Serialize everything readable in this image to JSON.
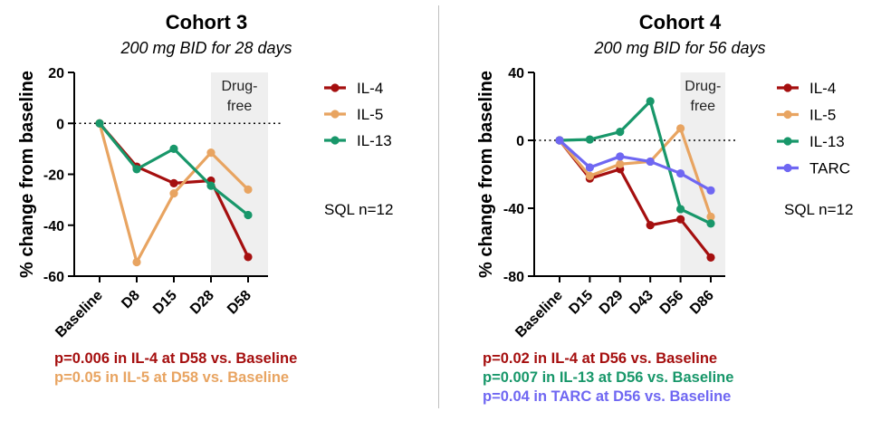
{
  "panels": [
    {
      "title": "Cohort 3",
      "subtitle": "200 mg BID for 28 days",
      "ylabel": "% change from baseline",
      "shaded_label": "Drug-free",
      "note": "SQL n=12",
      "pvalues": [
        {
          "text": "p=0.006 in IL-4 at D58 vs. Baseline",
          "color": "#a50f0f"
        },
        {
          "text": "p=0.05 in IL-5 at D58 vs. Baseline",
          "color": "#e8a461"
        }
      ]
    },
    {
      "title": "Cohort 4",
      "subtitle": "200 mg BID for 56 days",
      "ylabel": "% change from baseline",
      "shaded_label": "Drug-free",
      "note": "SQL n=12",
      "pvalues": [
        {
          "text": "p=0.02 in IL-4 at D56 vs. Baseline",
          "color": "#a50f0f"
        },
        {
          "text": "p=0.007 in IL-13 at D56 vs. Baseline",
          "color": "#18976a"
        },
        {
          "text": "p=0.04 in TARC at D56 vs. Baseline",
          "color": "#6f67f2"
        }
      ]
    }
  ],
  "chart_data": [
    {
      "type": "line",
      "title": "Cohort 3",
      "subtitle": "200 mg BID for 28 days",
      "xlabel": "",
      "ylabel": "% change from baseline",
      "categories": [
        "Baseline",
        "D8",
        "D15",
        "D28",
        "D58"
      ],
      "ylim": [
        -60,
        20
      ],
      "yticks": [
        20,
        0,
        -20,
        -40,
        -60
      ],
      "reference_line": 0,
      "shaded_region": {
        "from": "D28",
        "to": "D58",
        "label": "Drug-free"
      },
      "legend_position": "right",
      "series": [
        {
          "name": "IL-4",
          "color": "#a50f0f",
          "values": [
            0,
            -17,
            -23.5,
            -22.5,
            -52.5
          ]
        },
        {
          "name": "IL-5",
          "color": "#e8a461",
          "values": [
            0,
            -54.5,
            -27.5,
            -11.5,
            -26
          ]
        },
        {
          "name": "IL-13",
          "color": "#18976a",
          "values": [
            0,
            -18,
            -10,
            -24.5,
            -36
          ]
        }
      ]
    },
    {
      "type": "line",
      "title": "Cohort 4",
      "subtitle": "200 mg BID for 56 days",
      "xlabel": "",
      "ylabel": "% change from baseline",
      "categories": [
        "Baseline",
        "D15",
        "D29",
        "D43",
        "D56",
        "D86"
      ],
      "ylim": [
        -80,
        40
      ],
      "yticks": [
        40,
        0,
        -40,
        -80
      ],
      "reference_line": 0,
      "shaded_region": {
        "from": "D56",
        "to": "D86",
        "label": "Drug-free"
      },
      "legend_position": "right",
      "series": [
        {
          "name": "IL-4",
          "color": "#a50f0f",
          "values": [
            0,
            -22.5,
            -17,
            -50,
            -46.5,
            -69
          ]
        },
        {
          "name": "IL-5",
          "color": "#e8a461",
          "values": [
            0,
            -21,
            -14,
            -12.5,
            7,
            -45
          ]
        },
        {
          "name": "IL-13",
          "color": "#18976a",
          "values": [
            0,
            0.5,
            5,
            23,
            -40.5,
            -49
          ]
        },
        {
          "name": "TARC",
          "color": "#6f67f2",
          "values": [
            0,
            -16,
            -9.5,
            -12.5,
            -19.5,
            -29.5
          ]
        }
      ]
    }
  ]
}
